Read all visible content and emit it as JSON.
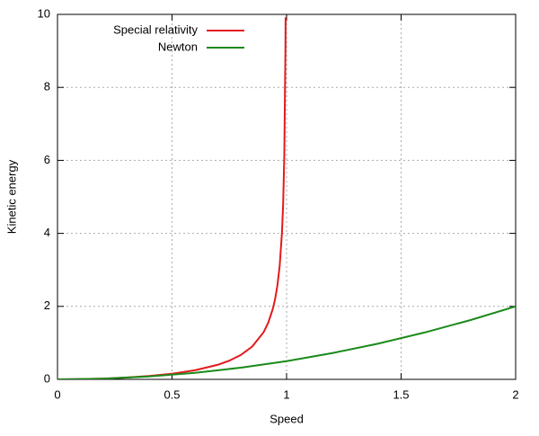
{
  "chart_data": {
    "type": "line",
    "xlabel": "Speed",
    "ylabel": "Kinetic energy",
    "xlim": [
      0,
      2
    ],
    "ylim": [
      0,
      10
    ],
    "xticks": [
      0,
      0.5,
      1,
      1.5,
      2
    ],
    "yticks": [
      0,
      2,
      4,
      6,
      8,
      10
    ],
    "grid": true,
    "legend": "top-left",
    "series": [
      {
        "name": "Special relativity",
        "color": "#e41a1c",
        "x": [
          0,
          0.1,
          0.2,
          0.3,
          0.4,
          0.5,
          0.6,
          0.7,
          0.75,
          0.8,
          0.85,
          0.9,
          0.92,
          0.94,
          0.95,
          0.96,
          0.97,
          0.98,
          0.985,
          0.99,
          0.995,
          0.9958
        ],
        "values": [
          0,
          0.005,
          0.021,
          0.048,
          0.091,
          0.155,
          0.25,
          0.4,
          0.512,
          0.667,
          0.898,
          1.294,
          1.552,
          1.931,
          2.203,
          2.571,
          3.113,
          4.025,
          4.795,
          6.089,
          9.013,
          9.92
        ]
      },
      {
        "name": "Newton",
        "color": "#1a8a1a",
        "x": [
          0,
          0.2,
          0.4,
          0.6,
          0.8,
          1,
          1.2,
          1.4,
          1.6,
          1.8,
          2
        ],
        "values": [
          0,
          0.02,
          0.08,
          0.18,
          0.32,
          0.5,
          0.72,
          0.98,
          1.28,
          1.62,
          2
        ]
      }
    ]
  }
}
